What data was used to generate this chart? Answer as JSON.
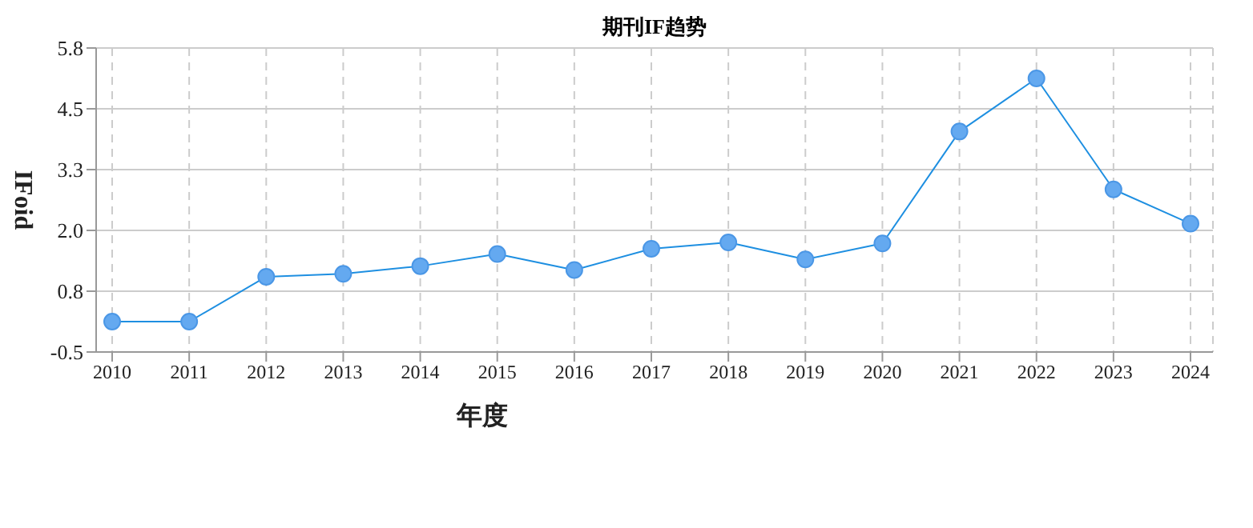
{
  "chart_data": {
    "type": "line",
    "title": "期刊IF趋势",
    "xlabel": "年度",
    "ylabel": "IFoid",
    "categories": [
      "2010",
      "2011",
      "2012",
      "2013",
      "2014",
      "2015",
      "2016",
      "2017",
      "2018",
      "2019",
      "2020",
      "2021",
      "2022",
      "2023",
      "2024"
    ],
    "series": [
      {
        "color": "#1e8fe1",
        "values": [
          0.13,
          0.13,
          1.06,
          1.12,
          1.28,
          1.53,
          1.2,
          1.64,
          1.77,
          1.42,
          1.75,
          4.07,
          5.17,
          2.87,
          2.16
        ]
      }
    ],
    "ylim": [
      -0.5,
      5.8
    ],
    "yticks": [
      {
        "value": -0.5,
        "label": "-0.5"
      },
      {
        "value": 0.76,
        "label": "0.8"
      },
      {
        "value": 2.02,
        "label": "2.0"
      },
      {
        "value": 3.28,
        "label": "3.3"
      },
      {
        "value": 4.54,
        "label": "4.5"
      },
      {
        "value": 5.8,
        "label": "5.8"
      }
    ],
    "grid": true,
    "marker": "circle",
    "line_style": "solid"
  }
}
